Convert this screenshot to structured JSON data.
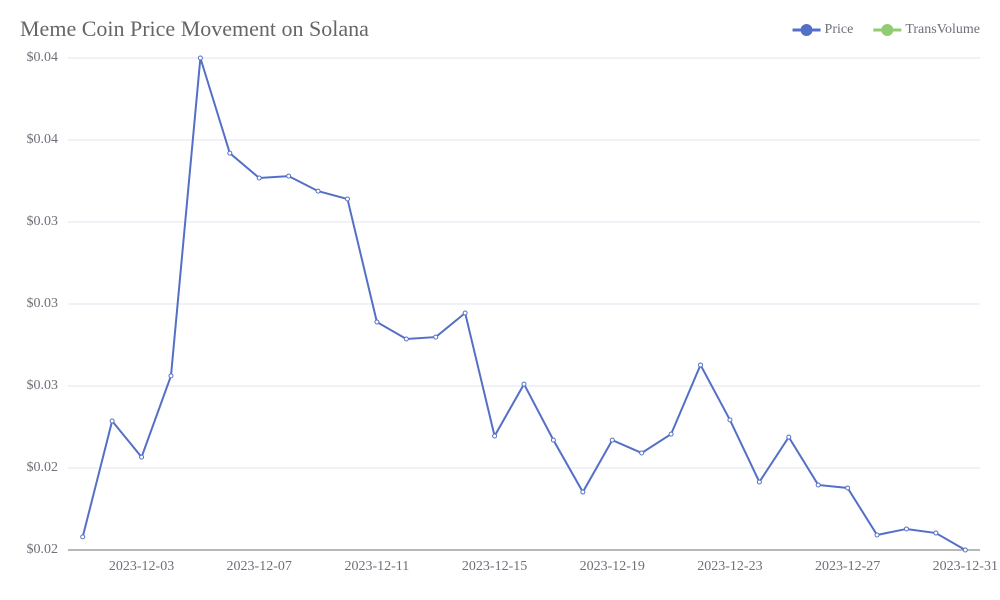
{
  "chart_data": {
    "type": "line",
    "title": "Meme Coin Price Movement on Solana",
    "categories": [
      "2023-12-01",
      "2023-12-02",
      "2023-12-03",
      "2023-12-04",
      "2023-12-05",
      "2023-12-06",
      "2023-12-07",
      "2023-12-08",
      "2023-12-09",
      "2023-12-10",
      "2023-12-11",
      "2023-12-12",
      "2023-12-13",
      "2023-12-14",
      "2023-12-15",
      "2023-12-16",
      "2023-12-17",
      "2023-12-18",
      "2023-12-19",
      "2023-12-20",
      "2023-12-21",
      "2023-12-22",
      "2023-12-23",
      "2023-12-24",
      "2023-12-25",
      "2023-12-26",
      "2023-12-27",
      "2023-12-28",
      "2023-12-29",
      "2023-12-30",
      "2023-12-31"
    ],
    "xticks": [
      "2023-12-03",
      "2023-12-07",
      "2023-12-11",
      "2023-12-15",
      "2023-12-19",
      "2023-12-23",
      "2023-12-27",
      "2023-12-31"
    ],
    "series": [
      {
        "name": "Price",
        "color": "#5470c6",
        "values": [
          0.02048,
          0.02472,
          0.0234,
          0.02637,
          0.038,
          0.03452,
          0.03361,
          0.03368,
          0.03313,
          0.03284,
          0.02834,
          0.02772,
          0.02779,
          0.02867,
          0.02417,
          0.02607,
          0.02402,
          0.02212,
          0.02402,
          0.02355,
          0.02424,
          0.02677,
          0.02476,
          0.02249,
          0.02413,
          0.02238,
          0.02227,
          0.02055,
          0.02077,
          0.02062,
          0.02
        ]
      },
      {
        "name": "TransVolume",
        "color": "#91cc75",
        "values": [
          null,
          null,
          null,
          null,
          null,
          null,
          null,
          null,
          null,
          null,
          null,
          null,
          null,
          null,
          null,
          null,
          null,
          null,
          null,
          null,
          null,
          null,
          null,
          null,
          null,
          null,
          null,
          null,
          null,
          null,
          null
        ]
      }
    ],
    "ylim": [
      0.02,
      0.038
    ],
    "yticks": [
      {
        "value": 0.02,
        "label": "$0.02"
      },
      {
        "value": 0.023,
        "label": "$0.02"
      },
      {
        "value": 0.026,
        "label": "$0.03"
      },
      {
        "value": 0.029,
        "label": "$0.03"
      },
      {
        "value": 0.032,
        "label": "$0.03"
      },
      {
        "value": 0.035,
        "label": "$0.04"
      },
      {
        "value": 0.038,
        "label": "$0.04"
      }
    ],
    "grid": true,
    "legend": "top-right"
  }
}
